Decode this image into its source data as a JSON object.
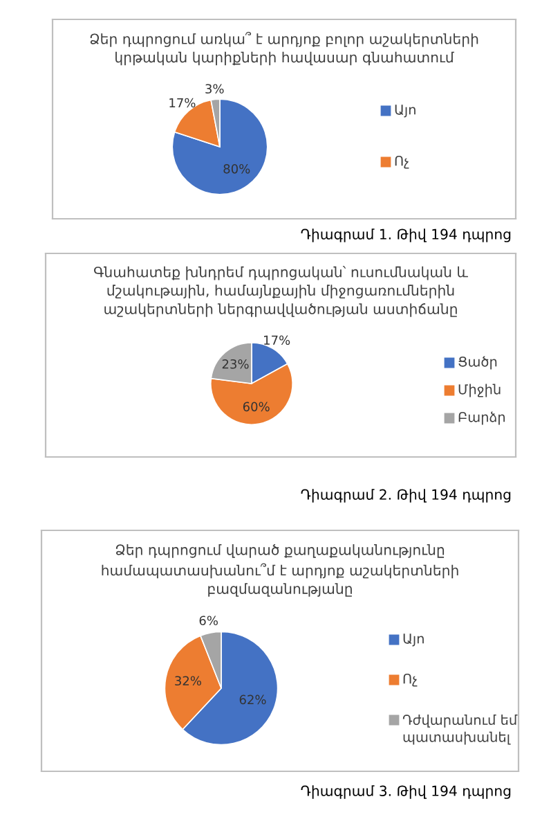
{
  "chart_data": [
    {
      "type": "pie",
      "title": "Ձեր դպրոցում առկա՞ է արդյոք բոլոր աշակերտների\nկրթական կարիքների հավասար գնահատում",
      "categories": [
        "Այո",
        "Ոչ",
        null
      ],
      "values": [
        80,
        17,
        3
      ],
      "colors": [
        "#4472c4",
        "#ed7d31",
        "#a5a5a5"
      ],
      "value_labels": [
        "80%",
        "17%",
        "3%"
      ],
      "legend": "right",
      "annotations": [
        "Դիագրամ 1. Թիվ 194 դպրոց"
      ]
    },
    {
      "type": "pie",
      "title": "Գնահատեք խնդրեմ դպրոցական՝ ուսումնական և\nմշակութային, համայնքային միջոցառումներին\nաշակերտների ներգրավվածության աստիճանը",
      "categories": [
        "Ցածր",
        "Միջին",
        "Բարձր"
      ],
      "values": [
        17,
        60,
        23
      ],
      "colors": [
        "#4472c4",
        "#ed7d31",
        "#a5a5a5"
      ],
      "value_labels": [
        "17%",
        "60%",
        "23%"
      ],
      "legend": "right",
      "annotations": [
        "Դիագրամ 2. Թիվ 194 դպրոց"
      ]
    },
    {
      "type": "pie",
      "title": "Ձեր դպրոցում վարած քաղաքականությունը\nհամապատասխանու՞մ է արդյոք աշակերտների\nբազմազանությանը",
      "categories": [
        "Այո",
        "Ոչ",
        "Դժվարանում եմ\nպատասխանել"
      ],
      "values": [
        62,
        32,
        6
      ],
      "colors": [
        "#4472c4",
        "#ed7d31",
        "#a5a5a5"
      ],
      "value_labels": [
        "62%",
        "32%",
        "6%"
      ],
      "legend": "right",
      "annotations": [
        "Դիագրամ 3. Թիվ 194 դպրոց"
      ]
    }
  ]
}
